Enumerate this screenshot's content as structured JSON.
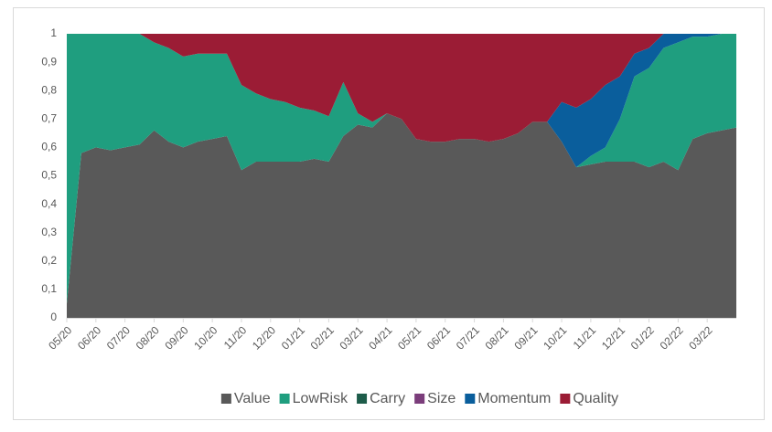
{
  "chart_data": {
    "type": "area",
    "stacked": true,
    "categories": [
      "05/20",
      null,
      "06/20",
      null,
      "07/20",
      null,
      "08/20",
      null,
      "09/20",
      null,
      "10/20",
      null,
      "11/20",
      null,
      "12/20",
      null,
      "01/21",
      null,
      "02/21",
      null,
      "03/21",
      null,
      "04/21",
      null,
      "05/21",
      null,
      "06/21",
      null,
      "07/21",
      null,
      "08/21",
      null,
      "09/21",
      null,
      "10/21",
      null,
      "11/21",
      null,
      "12/21",
      null,
      "01/22",
      null,
      "02/22",
      null,
      "03/22",
      null,
      null
    ],
    "series": [
      {
        "name": "Value",
        "color": "#595959",
        "values": [
          0.05,
          0.58,
          0.6,
          0.59,
          0.6,
          0.61,
          0.66,
          0.62,
          0.6,
          0.62,
          0.63,
          0.64,
          0.52,
          0.55,
          0.55,
          0.55,
          0.55,
          0.56,
          0.55,
          0.64,
          0.68,
          0.67,
          0.72,
          0.7,
          0.63,
          0.62,
          0.62,
          0.63,
          0.63,
          0.62,
          0.63,
          0.65,
          0.69,
          0.69,
          0.62,
          0.53,
          0.54,
          0.55,
          0.55,
          0.55,
          0.53,
          0.55,
          0.52,
          0.63,
          0.65,
          0.66,
          0.67
        ]
      },
      {
        "name": "LowRisk",
        "color": "#1f9e7f",
        "values": [
          0.95,
          0.42,
          0.4,
          0.41,
          0.4,
          0.39,
          0.31,
          0.33,
          0.32,
          0.31,
          0.3,
          0.29,
          0.3,
          0.24,
          0.22,
          0.21,
          0.19,
          0.17,
          0.16,
          0.19,
          0.04,
          0.02,
          0,
          0,
          0,
          0,
          0,
          0,
          0,
          0,
          0,
          0,
          0,
          0,
          0,
          0,
          0.03,
          0.05,
          0.15,
          0.3,
          0.35,
          0.4,
          0.45,
          0.36,
          0.34,
          0.34,
          0.33
        ]
      },
      {
        "name": "Carry",
        "color": "#1d5c4a",
        "values": [
          0,
          0,
          0,
          0,
          0,
          0,
          0,
          0,
          0,
          0,
          0,
          0,
          0,
          0,
          0,
          0,
          0,
          0,
          0,
          0,
          0,
          0,
          0,
          0,
          0,
          0,
          0,
          0,
          0,
          0,
          0,
          0,
          0,
          0,
          0,
          0,
          0,
          0,
          0,
          0,
          0,
          0,
          0,
          0,
          0,
          0,
          0
        ]
      },
      {
        "name": "Size",
        "color": "#7b3d7b",
        "values": [
          0,
          0,
          0,
          0,
          0,
          0,
          0,
          0,
          0,
          0,
          0,
          0,
          0,
          0,
          0,
          0,
          0,
          0,
          0,
          0,
          0,
          0,
          0,
          0,
          0,
          0,
          0,
          0,
          0,
          0,
          0,
          0,
          0,
          0,
          0,
          0,
          0,
          0,
          0,
          0,
          0,
          0,
          0,
          0,
          0,
          0,
          0
        ]
      },
      {
        "name": "Momentum",
        "color": "#0a5e9c",
        "values": [
          0,
          0,
          0,
          0,
          0,
          0,
          0,
          0,
          0,
          0,
          0,
          0,
          0,
          0,
          0,
          0,
          0,
          0,
          0,
          0,
          0,
          0,
          0,
          0,
          0,
          0,
          0,
          0,
          0,
          0,
          0,
          0,
          0,
          0,
          0.14,
          0.21,
          0.2,
          0.22,
          0.15,
          0.08,
          0.07,
          0.05,
          0.03,
          0.01,
          0.01,
          0,
          0
        ]
      },
      {
        "name": "Quality",
        "color": "#9b1c35",
        "values": [
          0,
          0,
          0,
          0,
          0,
          0,
          0.03,
          0.05,
          0.08,
          0.07,
          0.07,
          0.07,
          0.18,
          0.21,
          0.23,
          0.24,
          0.26,
          0.27,
          0.29,
          0.17,
          0.28,
          0.31,
          0.28,
          0.3,
          0.37,
          0.38,
          0.38,
          0.37,
          0.37,
          0.38,
          0.37,
          0.35,
          0.31,
          0.31,
          0.24,
          0.26,
          0.23,
          0.18,
          0.15,
          0.07,
          0.05,
          0,
          0,
          0,
          0,
          0,
          0
        ]
      }
    ],
    "ylim": [
      0,
      1
    ],
    "yticks": [
      0,
      {
        "value": 0.1,
        "label": "0,1"
      },
      {
        "value": 0.2,
        "label": "0,2"
      },
      {
        "value": 0.3,
        "label": "0,3"
      },
      {
        "value": 0.4,
        "label": "0,4"
      },
      {
        "value": 0.5,
        "label": "0,5"
      },
      {
        "value": 0.6,
        "label": "0,6"
      },
      {
        "value": 0.7,
        "label": "0,7"
      },
      {
        "value": 0.8,
        "label": "0,8"
      },
      {
        "value": 0.9,
        "label": "0,9"
      },
      1
    ],
    "legend": "bottom"
  }
}
